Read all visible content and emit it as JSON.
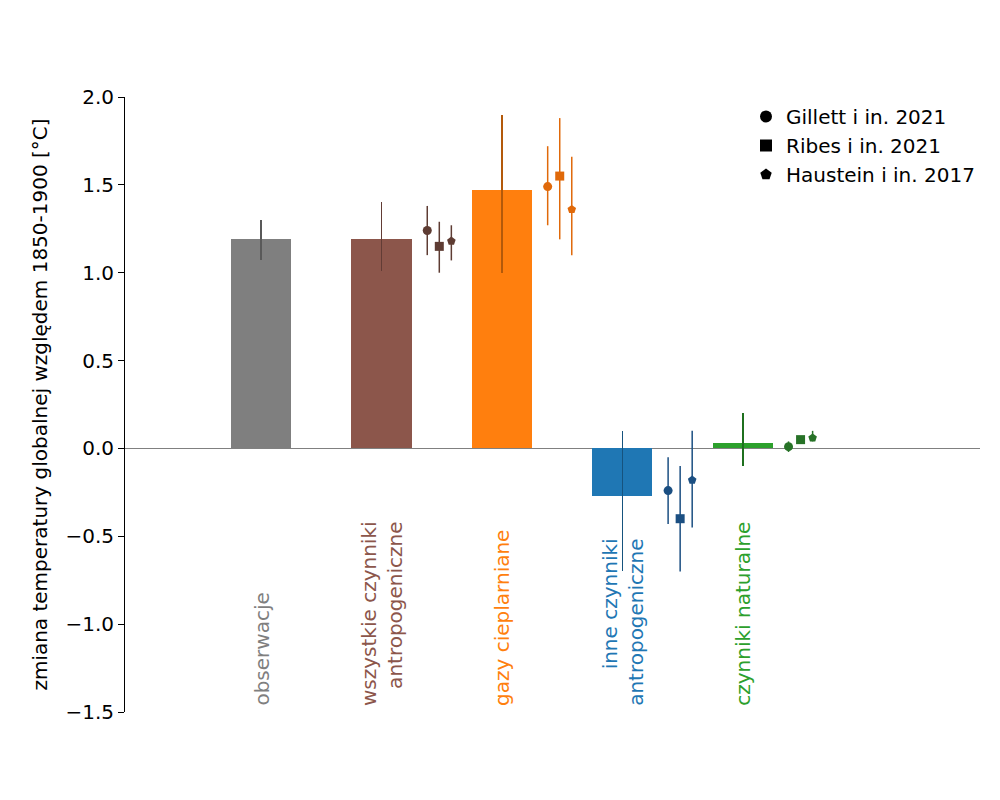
{
  "chart_data": {
    "type": "bar",
    "ylabel": "zmiana temperatury globalnej względem 1850-1900 [°C]",
    "categories": [
      "obserwacje",
      "wszystkie czynniki\nantropogeniczne",
      "gazy cieplarniane",
      "inne czynniki\nantropogeniczne",
      "czynniki naturalne"
    ],
    "values": [
      1.19,
      1.19,
      1.47,
      -0.27,
      0.03
    ],
    "error_low": [
      1.07,
      1.01,
      1.0,
      -0.7,
      -0.1
    ],
    "error_high": [
      1.3,
      1.4,
      1.9,
      0.1,
      0.2
    ],
    "colors": [
      "#7f7f7f",
      "#8c564b",
      "#ff7f0e",
      "#1f77b4",
      "#2ca02c"
    ],
    "series": [
      {
        "name": "Gillett i in. 2021",
        "type": "scatter",
        "marker": "circle",
        "colors": [
          "#555555",
          "#5e3c33",
          "#e0690a",
          "#1b4f82",
          "#277227"
        ],
        "values": [
          null,
          1.24,
          1.49,
          -0.24,
          0.01
        ],
        "error_low": [
          null,
          1.1,
          1.27,
          -0.43,
          -0.02
        ],
        "error_high": [
          null,
          1.38,
          1.72,
          -0.05,
          0.04
        ]
      },
      {
        "name": "Ribes i in. 2021",
        "type": "scatter",
        "marker": "square",
        "colors": [
          "#555555",
          "#5e3c33",
          "#e0690a",
          "#1b4f82",
          "#277227"
        ],
        "values": [
          null,
          1.15,
          1.55,
          -0.4,
          0.05
        ],
        "error_low": [
          null,
          1.0,
          1.19,
          -0.7,
          0.04
        ],
        "error_high": [
          null,
          1.29,
          1.88,
          -0.1,
          0.06
        ]
      },
      {
        "name": "Haustein i in. 2017",
        "type": "scatter",
        "marker": "pentagon",
        "colors": [
          "#555555",
          "#5e3c33",
          "#e0690a",
          "#1b4f82",
          "#277227"
        ],
        "values": [
          null,
          1.18,
          1.36,
          -0.18,
          0.06
        ],
        "error_low": [
          null,
          1.07,
          1.1,
          -0.45,
          0.04
        ],
        "error_high": [
          null,
          1.27,
          1.66,
          0.1,
          0.1
        ]
      }
    ],
    "ylim": [
      -1.5,
      2.0
    ],
    "yticks": [
      {
        "value": -1.5,
        "label": "−1.5"
      },
      {
        "value": -1.0,
        "label": "−1.0"
      },
      {
        "value": -0.5,
        "label": "−0.5"
      },
      {
        "value": 0.0,
        "label": "0.0"
      },
      {
        "value": 0.5,
        "label": "0.5"
      },
      {
        "value": 1.0,
        "label": "1.0"
      },
      {
        "value": 1.5,
        "label": "1.5"
      },
      {
        "value": 2.0,
        "label": "2.0"
      }
    ],
    "grid": false,
    "legend": "upper right",
    "tick_labels": "y"
  }
}
